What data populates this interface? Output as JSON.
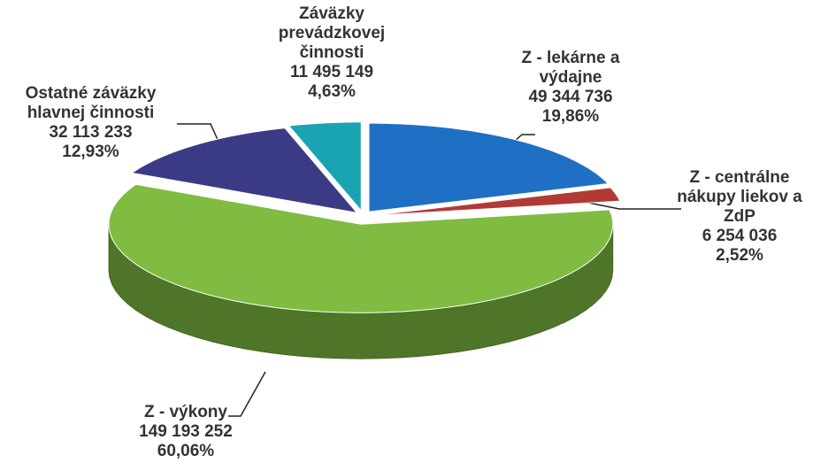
{
  "chart_data": {
    "type": "pie3d",
    "categories": [
      "Z - lekárne a výdajne",
      "Z - centrálne nákupy liekov a ZdP",
      "Z - výkony",
      "Ostatné záväzky hlavnej činnosti",
      "Záväzky prevádzkovej činnosti"
    ],
    "values": [
      49344736,
      6254036,
      149193252,
      32113233,
      11495149
    ],
    "value_labels": [
      "49 344 736",
      "6 254 036",
      "149 193 252",
      "32 113 233",
      "11 495 149"
    ],
    "percentages": [
      19.86,
      2.52,
      60.06,
      12.93,
      4.63
    ],
    "percentage_labels": [
      "19,86%",
      "2,52%",
      "60,06%",
      "12,93%",
      "4,63%"
    ],
    "colors": [
      "#1f6fc4",
      "#b23a34",
      "#7fbc41",
      "#3b3b85",
      "#1aa3b3"
    ]
  }
}
